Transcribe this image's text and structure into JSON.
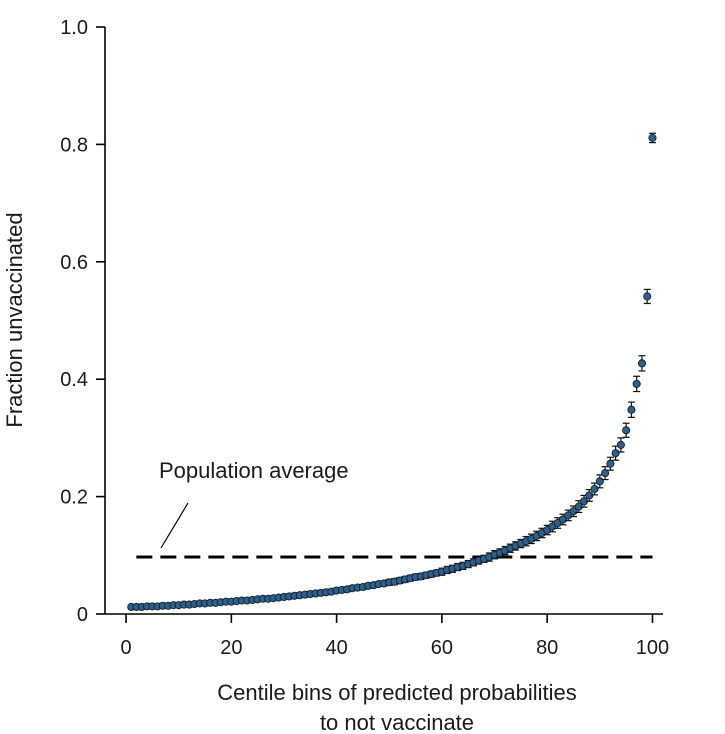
{
  "chart_data": {
    "type": "scatter",
    "title": "",
    "xlabel_lines": [
      "Centile bins of predicted probabilities",
      "to not vaccinate"
    ],
    "ylabel": "Fraction unvaccinated",
    "xlim": [
      -4,
      102
    ],
    "ylim": [
      0,
      1.0
    ],
    "xticks": [
      0,
      20,
      40,
      60,
      80,
      100
    ],
    "xtick_labels": [
      "0",
      "20",
      "40",
      "60",
      "80",
      "100"
    ],
    "yticks": [
      0,
      0.2,
      0.4,
      0.6,
      0.8,
      1.0
    ],
    "ytick_labels": [
      "0",
      "0.2",
      "0.4",
      "0.6",
      "0.8",
      "1.0"
    ],
    "marker_color": "#2f5f86",
    "marker_edge_color": "#0d2236",
    "reference_line": {
      "label": "Population average",
      "y": 0.097,
      "x_start": 1,
      "x_end": 100,
      "style": "dashed",
      "color": "#000000"
    },
    "series": [
      {
        "name": "Centile bins",
        "x": [
          1,
          2,
          3,
          4,
          5,
          6,
          7,
          8,
          9,
          10,
          11,
          12,
          13,
          14,
          15,
          16,
          17,
          18,
          19,
          20,
          21,
          22,
          23,
          24,
          25,
          26,
          27,
          28,
          29,
          30,
          31,
          32,
          33,
          34,
          35,
          36,
          37,
          38,
          39,
          40,
          41,
          42,
          43,
          44,
          45,
          46,
          47,
          48,
          49,
          50,
          51,
          52,
          53,
          54,
          55,
          56,
          57,
          58,
          59,
          60,
          61,
          62,
          63,
          64,
          65,
          66,
          67,
          68,
          69,
          70,
          71,
          72,
          73,
          74,
          75,
          76,
          77,
          78,
          79,
          80,
          81,
          82,
          83,
          84,
          85,
          86,
          87,
          88,
          89,
          90,
          91,
          92,
          93,
          94,
          95,
          96,
          97,
          98,
          99,
          100
        ],
        "y": [
          0.012,
          0.012,
          0.012,
          0.013,
          0.013,
          0.013,
          0.014,
          0.014,
          0.015,
          0.015,
          0.016,
          0.016,
          0.017,
          0.018,
          0.018,
          0.019,
          0.019,
          0.02,
          0.021,
          0.021,
          0.022,
          0.023,
          0.023,
          0.024,
          0.025,
          0.026,
          0.026,
          0.027,
          0.028,
          0.029,
          0.03,
          0.031,
          0.032,
          0.033,
          0.034,
          0.035,
          0.036,
          0.037,
          0.038,
          0.04,
          0.041,
          0.042,
          0.044,
          0.045,
          0.046,
          0.048,
          0.049,
          0.051,
          0.052,
          0.054,
          0.055,
          0.057,
          0.059,
          0.061,
          0.063,
          0.064,
          0.066,
          0.068,
          0.07,
          0.072,
          0.075,
          0.077,
          0.08,
          0.082,
          0.085,
          0.088,
          0.091,
          0.094,
          0.097,
          0.101,
          0.104,
          0.108,
          0.112,
          0.116,
          0.12,
          0.124,
          0.128,
          0.133,
          0.138,
          0.143,
          0.149,
          0.155,
          0.161,
          0.168,
          0.175,
          0.183,
          0.192,
          0.202,
          0.213,
          0.226,
          0.24,
          0.256,
          0.274,
          0.288,
          0.313,
          0.348,
          0.392,
          0.427,
          0.541,
          0.811
        ],
        "err": [
          0.003,
          0.003,
          0.003,
          0.003,
          0.003,
          0.003,
          0.003,
          0.003,
          0.003,
          0.003,
          0.003,
          0.003,
          0.003,
          0.003,
          0.003,
          0.003,
          0.003,
          0.003,
          0.003,
          0.003,
          0.003,
          0.003,
          0.003,
          0.003,
          0.003,
          0.003,
          0.003,
          0.003,
          0.003,
          0.003,
          0.004,
          0.004,
          0.004,
          0.004,
          0.004,
          0.004,
          0.004,
          0.004,
          0.004,
          0.004,
          0.004,
          0.004,
          0.004,
          0.004,
          0.004,
          0.004,
          0.004,
          0.004,
          0.004,
          0.005,
          0.005,
          0.005,
          0.005,
          0.005,
          0.005,
          0.005,
          0.005,
          0.005,
          0.005,
          0.006,
          0.006,
          0.006,
          0.006,
          0.006,
          0.006,
          0.006,
          0.006,
          0.006,
          0.007,
          0.007,
          0.007,
          0.007,
          0.007,
          0.007,
          0.007,
          0.008,
          0.008,
          0.008,
          0.008,
          0.008,
          0.009,
          0.009,
          0.009,
          0.009,
          0.009,
          0.01,
          0.01,
          0.01,
          0.01,
          0.011,
          0.011,
          0.011,
          0.012,
          0.012,
          0.012,
          0.013,
          0.013,
          0.013,
          0.012,
          0.008
        ]
      }
    ]
  }
}
